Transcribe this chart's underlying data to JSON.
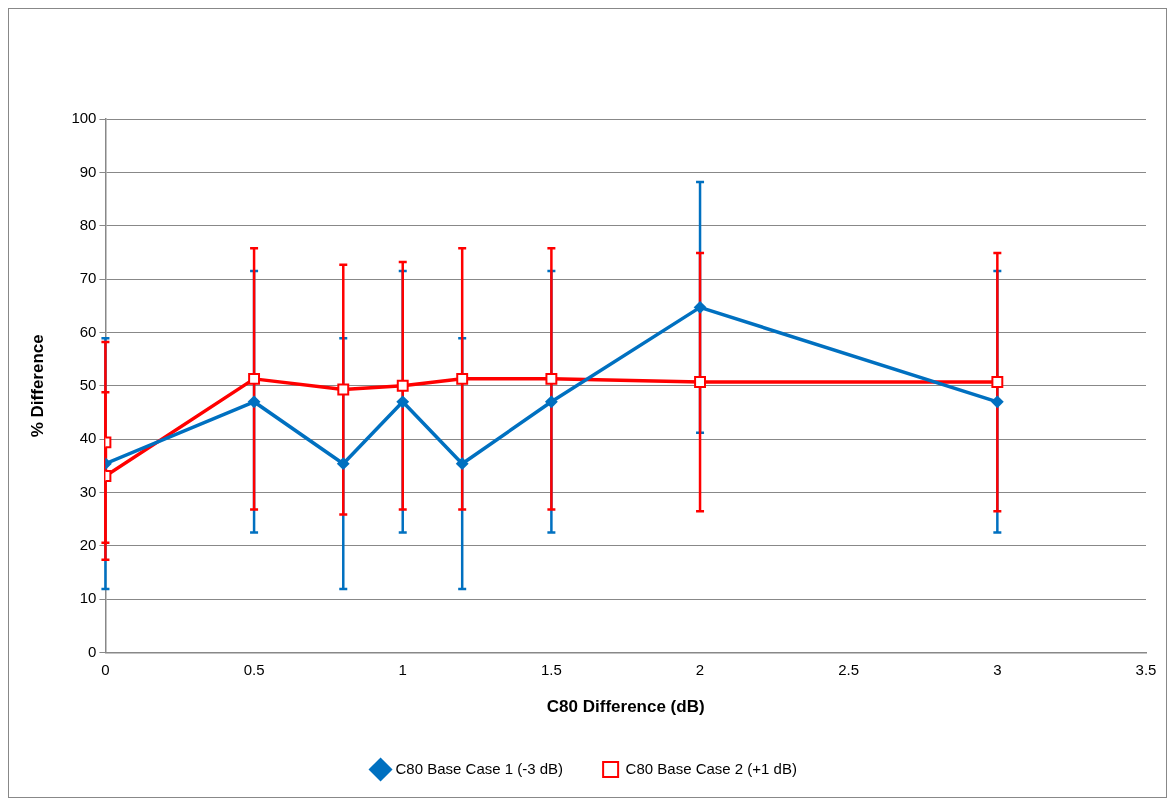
{
  "chart_data": {
    "type": "line",
    "xlabel": "C80 Difference (dB)",
    "ylabel": "% Difference",
    "xlim": [
      0,
      3.5
    ],
    "xticks": [
      0,
      0.5,
      1,
      1.5,
      2,
      2.5,
      3,
      3.5
    ],
    "ylim": [
      0,
      100
    ],
    "yticks": [
      0,
      10,
      20,
      30,
      40,
      50,
      60,
      70,
      80,
      90,
      100
    ],
    "grid": "y",
    "legend": "bottom",
    "line_style": "solid",
    "series": [
      {
        "name": "C80 Base Case 1 (-3 dB)",
        "color": "#0070c0",
        "marker": "diamond",
        "x": [
          0,
          0.5,
          0.8,
          1,
          1.2,
          1.5,
          2,
          3
        ],
        "values": [
          35.4,
          47,
          35.4,
          47,
          35.4,
          47,
          64.7,
          47
        ],
        "errors": [
          23.5,
          24.5,
          23.5,
          24.5,
          23.5,
          24.5,
          23.5,
          24.5
        ]
      },
      {
        "name": "C80 Base Case 2 (+1 dB)",
        "color": "#ff0000",
        "marker": "square",
        "x": [
          0,
          0,
          0.5,
          0.8,
          1,
          1.2,
          1.5,
          2,
          3
        ],
        "values": [
          39.4,
          33.1,
          51.3,
          49.3,
          50,
          51.3,
          51.3,
          50.7,
          50.7
        ],
        "errors": [
          18.8,
          15.7,
          24.5,
          23.4,
          23.2,
          24.5,
          24.5,
          24.2,
          24.2
        ]
      }
    ]
  }
}
